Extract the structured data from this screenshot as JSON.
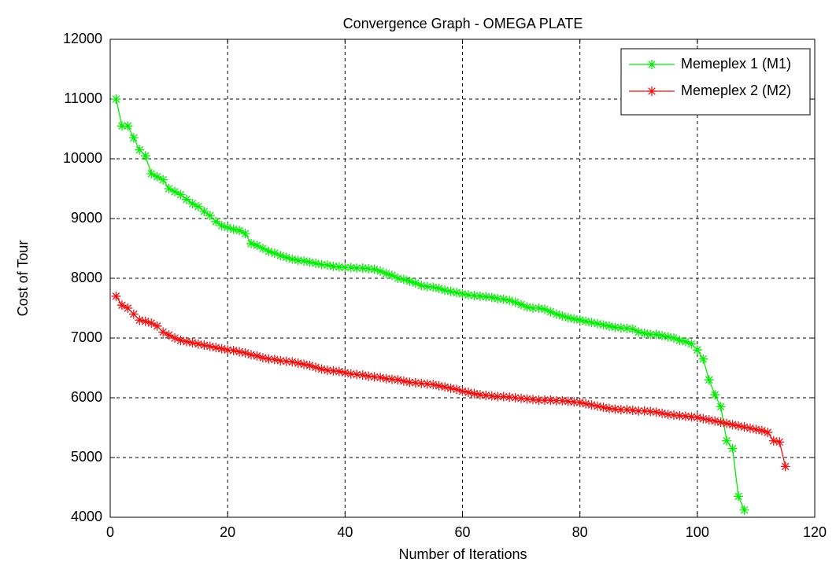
{
  "chart_data": {
    "type": "line",
    "title": "Convergence Graph - OMEGA PLATE",
    "x_label": "Number of Iterations",
    "y_label": "Cost of Tour",
    "xlim": [
      0,
      120
    ],
    "xticks": [
      0,
      20,
      40,
      60,
      80,
      100,
      120
    ],
    "ylim": [
      4000,
      12000
    ],
    "yticks": [
      4000,
      5000,
      6000,
      7000,
      8000,
      9000,
      10000,
      11000,
      12000
    ],
    "grid": true,
    "legend_position": "upper right",
    "series": [
      {
        "name": "Memeplex 1 (M1)",
        "color": "#00ee00",
        "x": [
          1,
          2,
          3,
          4,
          5,
          6,
          7,
          8,
          9,
          10,
          11,
          12,
          13,
          14,
          15,
          16,
          17,
          18,
          19,
          20,
          21,
          22,
          23,
          24,
          25,
          26,
          27,
          28,
          29,
          30,
          31,
          32,
          33,
          34,
          35,
          36,
          37,
          38,
          39,
          40,
          41,
          42,
          43,
          44,
          45,
          46,
          47,
          48,
          49,
          50,
          51,
          52,
          53,
          54,
          55,
          56,
          57,
          58,
          59,
          60,
          61,
          62,
          63,
          64,
          65,
          66,
          67,
          68,
          69,
          70,
          71,
          72,
          73,
          74,
          75,
          76,
          77,
          78,
          79,
          80,
          81,
          82,
          83,
          84,
          85,
          86,
          87,
          88,
          89,
          90,
          91,
          92,
          93,
          94,
          95,
          96,
          97,
          98,
          99,
          100,
          101,
          102,
          103,
          104,
          105,
          106,
          107,
          108
        ],
        "values": [
          11000,
          10550,
          10550,
          10350,
          10150,
          10050,
          9750,
          9700,
          9650,
          9500,
          9450,
          9400,
          9320,
          9250,
          9200,
          9120,
          9050,
          8950,
          8880,
          8850,
          8820,
          8800,
          8750,
          8580,
          8550,
          8500,
          8450,
          8420,
          8380,
          8350,
          8320,
          8300,
          8290,
          8270,
          8250,
          8230,
          8220,
          8200,
          8190,
          8180,
          8180,
          8170,
          8170,
          8160,
          8150,
          8120,
          8080,
          8050,
          8000,
          7980,
          7950,
          7920,
          7880,
          7860,
          7850,
          7830,
          7800,
          7780,
          7760,
          7740,
          7720,
          7710,
          7700,
          7690,
          7680,
          7660,
          7650,
          7630,
          7600,
          7560,
          7520,
          7500,
          7500,
          7480,
          7440,
          7400,
          7370,
          7340,
          7320,
          7300,
          7280,
          7260,
          7240,
          7220,
          7200,
          7180,
          7170,
          7160,
          7150,
          7100,
          7080,
          7060,
          7060,
          7040,
          7020,
          7000,
          6960,
          6940,
          6900,
          6800,
          6650,
          6300,
          6050,
          5850,
          5280,
          5150,
          4350,
          4120
        ]
      },
      {
        "name": "Memeplex 2 (M2)",
        "color": "#ee1111",
        "x": [
          1,
          2,
          3,
          4,
          5,
          6,
          7,
          8,
          9,
          10,
          11,
          12,
          13,
          14,
          15,
          16,
          17,
          18,
          19,
          20,
          21,
          22,
          23,
          24,
          25,
          26,
          27,
          28,
          29,
          30,
          31,
          32,
          33,
          34,
          35,
          36,
          37,
          38,
          39,
          40,
          41,
          42,
          43,
          44,
          45,
          46,
          47,
          48,
          49,
          50,
          51,
          52,
          53,
          54,
          55,
          56,
          57,
          58,
          59,
          60,
          61,
          62,
          63,
          64,
          65,
          66,
          67,
          68,
          69,
          70,
          71,
          72,
          73,
          74,
          75,
          76,
          77,
          78,
          79,
          80,
          81,
          82,
          83,
          84,
          85,
          86,
          87,
          88,
          89,
          90,
          91,
          92,
          93,
          94,
          95,
          96,
          97,
          98,
          99,
          100,
          101,
          102,
          103,
          104,
          105,
          106,
          107,
          108,
          109,
          110,
          111,
          112,
          113,
          114,
          115
        ],
        "values": [
          7700,
          7550,
          7500,
          7400,
          7300,
          7280,
          7250,
          7200,
          7100,
          7050,
          7000,
          6960,
          6940,
          6920,
          6900,
          6880,
          6860,
          6840,
          6820,
          6800,
          6790,
          6770,
          6750,
          6720,
          6700,
          6670,
          6650,
          6640,
          6620,
          6610,
          6600,
          6580,
          6560,
          6540,
          6510,
          6480,
          6460,
          6450,
          6440,
          6420,
          6400,
          6390,
          6380,
          6360,
          6350,
          6340,
          6320,
          6310,
          6300,
          6280,
          6260,
          6250,
          6240,
          6230,
          6220,
          6200,
          6180,
          6160,
          6140,
          6110,
          6090,
          6070,
          6050,
          6040,
          6030,
          6020,
          6020,
          6010,
          6000,
          5990,
          5980,
          5970,
          5960,
          5960,
          5960,
          5950,
          5950,
          5940,
          5930,
          5920,
          5900,
          5880,
          5860,
          5840,
          5820,
          5810,
          5800,
          5800,
          5790,
          5780,
          5780,
          5770,
          5760,
          5740,
          5720,
          5710,
          5700,
          5690,
          5680,
          5670,
          5650,
          5630,
          5610,
          5590,
          5570,
          5550,
          5530,
          5510,
          5490,
          5470,
          5450,
          5420,
          5280,
          5260,
          4850
        ]
      }
    ]
  }
}
